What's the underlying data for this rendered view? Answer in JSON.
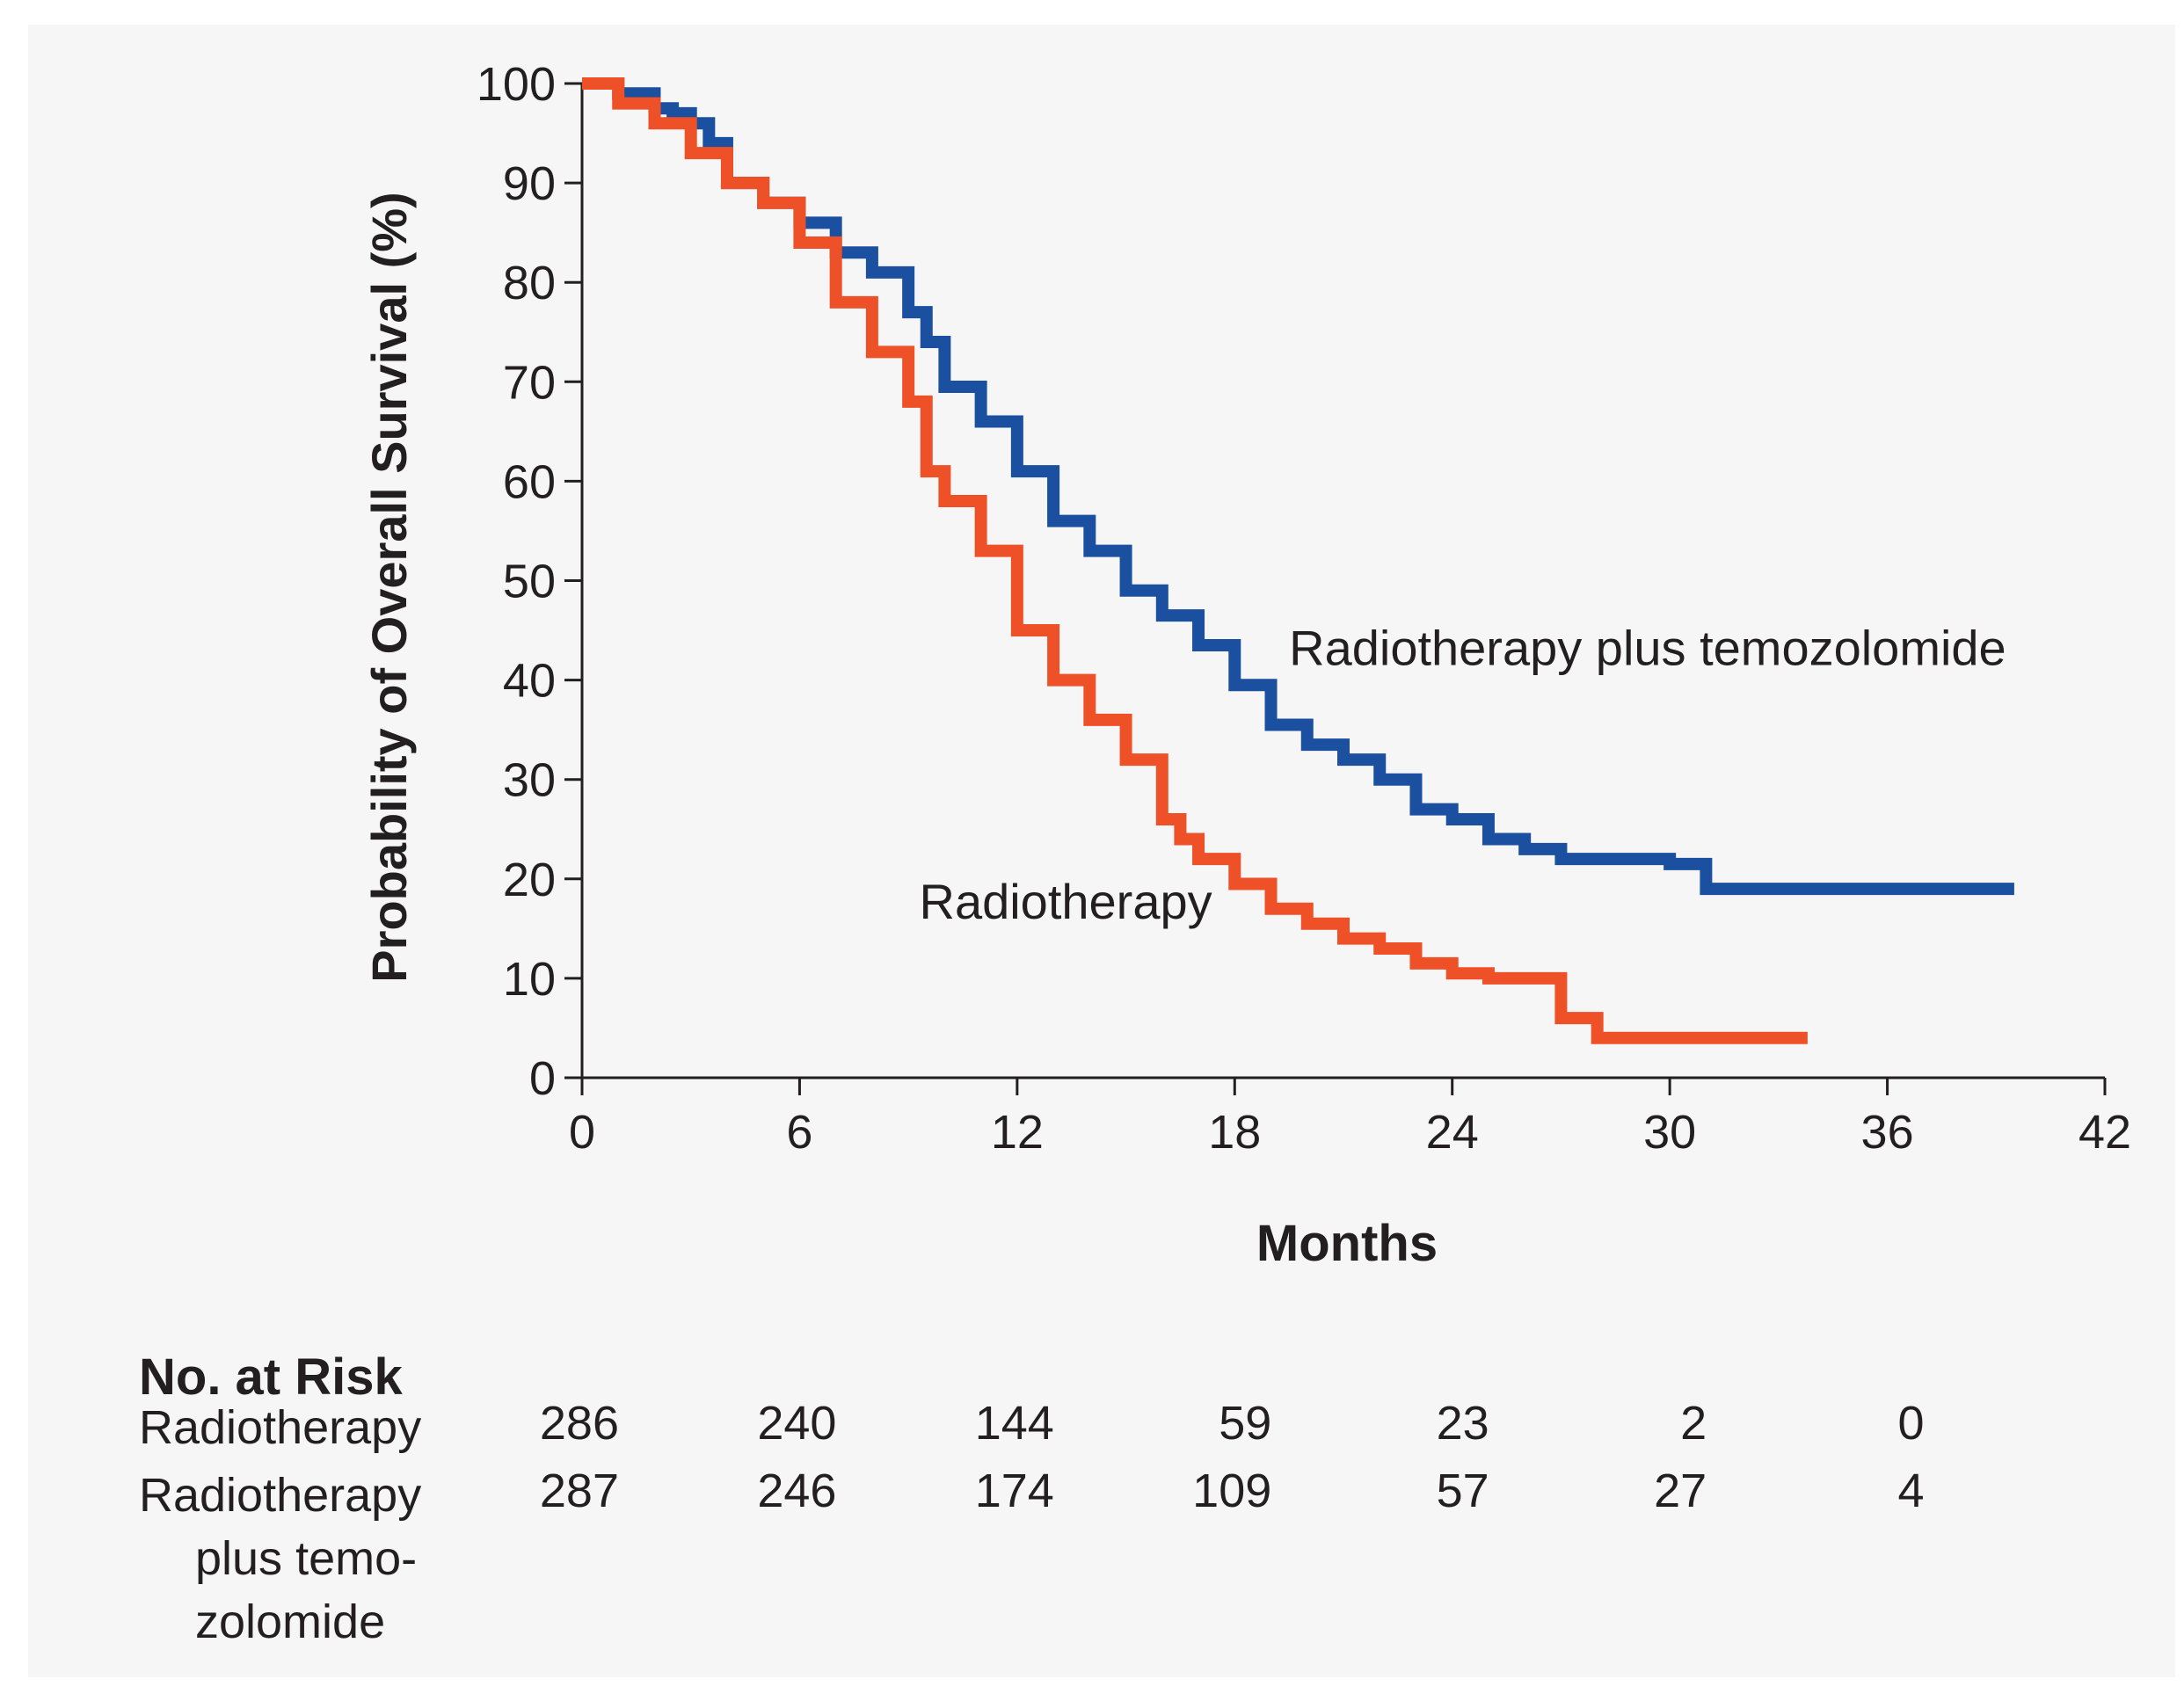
{
  "chart_data": {
    "type": "line",
    "step": true,
    "xlabel": "Months",
    "ylabel": "Probability of Overall Survival (%)",
    "xlim": [
      0,
      42
    ],
    "ylim": [
      0,
      100
    ],
    "xticks": [
      "0",
      "6",
      "12",
      "18",
      "24",
      "30",
      "36",
      "42"
    ],
    "yticks": [
      "0",
      "10",
      "20",
      "30",
      "40",
      "50",
      "60",
      "70",
      "80",
      "90",
      "100"
    ],
    "grid": false,
    "series": [
      {
        "name": "Radiotherapy plus temozolomide",
        "color": "#1b4fa0",
        "x": [
          0,
          1,
          2,
          2.5,
          3,
          3.5,
          4,
          5,
          6,
          7,
          8,
          9,
          9.5,
          10,
          11,
          12,
          13,
          14,
          15,
          16,
          17,
          18,
          19,
          20,
          21,
          22,
          23,
          24,
          25,
          26,
          27,
          28,
          29,
          30,
          31,
          32,
          34,
          36,
          39.5
        ],
        "values": [
          100,
          99,
          97.5,
          97,
          96,
          94,
          90,
          88,
          86,
          83,
          81,
          77,
          74,
          69.5,
          66,
          61,
          56,
          53,
          49,
          46.5,
          43.5,
          39.5,
          35.5,
          33.5,
          32,
          30,
          27,
          26,
          24,
          23,
          22,
          22,
          22,
          21.5,
          19,
          19,
          19,
          19,
          19
        ]
      },
      {
        "name": "Radiotherapy",
        "color": "#ee5028",
        "x": [
          0,
          1,
          2,
          3,
          4,
          5,
          6,
          7,
          8,
          9,
          9.5,
          10,
          11,
          12,
          13,
          14,
          15,
          16,
          16.5,
          17,
          18,
          19,
          20,
          21,
          22,
          23,
          24,
          25,
          26,
          27,
          28,
          29,
          30,
          32,
          33.8
        ],
        "values": [
          100,
          98,
          96,
          93,
          90,
          88,
          84,
          78,
          73,
          68,
          61,
          58,
          53,
          45,
          40,
          36,
          32,
          26,
          24,
          22,
          19.5,
          17,
          15.5,
          14,
          13,
          11.5,
          10.5,
          10,
          10,
          6,
          4,
          4,
          4,
          4,
          4
        ]
      }
    ],
    "annotations": [
      {
        "text": "Radiotherapy plus temozolomide",
        "x": 19.5,
        "y": 41.5
      },
      {
        "text": "Radiotherapy",
        "x": 9.3,
        "y": 16
      }
    ],
    "risk_table": {
      "title": "No. at Risk",
      "timepoints": [
        0,
        6,
        12,
        18,
        24,
        30,
        36
      ],
      "rows": [
        {
          "label": [
            "Radiotherapy"
          ],
          "values": [
            "286",
            "240",
            "144",
            "59",
            "23",
            "2",
            "0"
          ]
        },
        {
          "label": [
            "Radiotherapy",
            "plus temo-",
            "zolomide"
          ],
          "values": [
            "287",
            "246",
            "174",
            "109",
            "57",
            "27",
            "4"
          ]
        }
      ]
    }
  }
}
